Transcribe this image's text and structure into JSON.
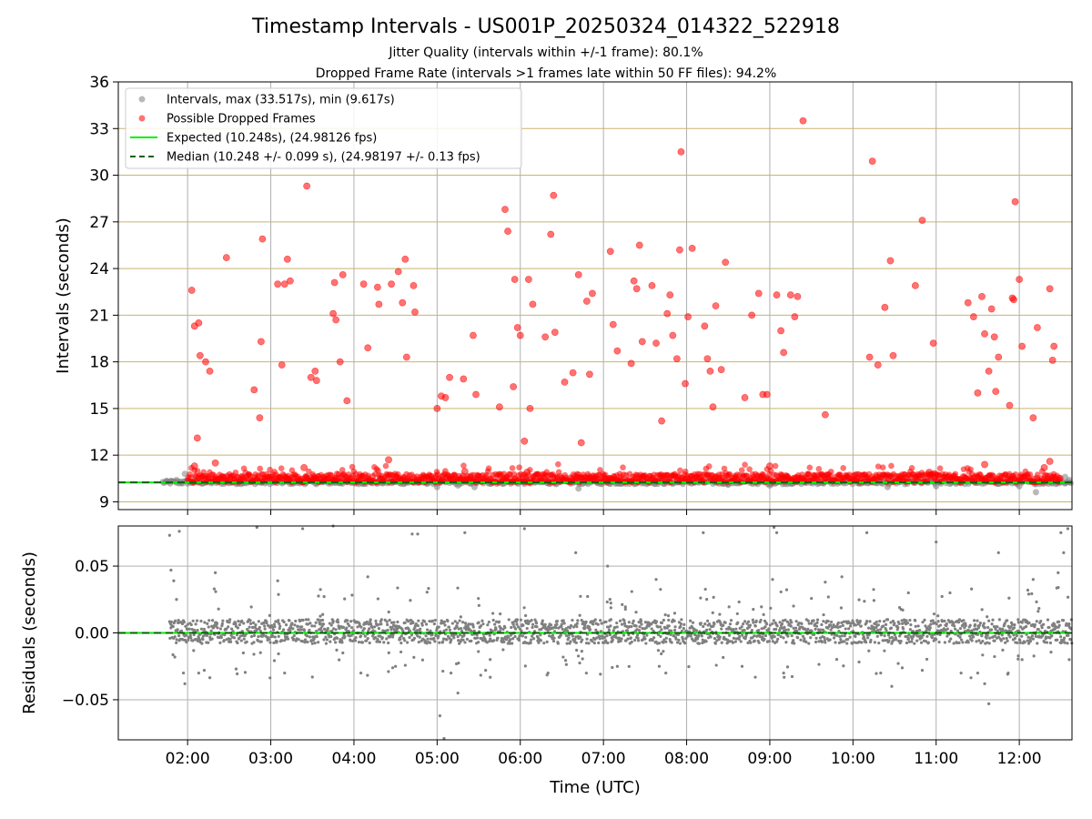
{
  "title": "Timestamp Intervals - US001P_20250324_014322_522918",
  "subtitle_lines": [
    "Jitter Quality (intervals within +/-1 frame): 80.1%",
    "Dropped Frame Rate (intervals >1 frames late within 50 FF files): 94.2%"
  ],
  "colors": {
    "intervals": "#808080",
    "dropped": "#ff0000",
    "expected": "#00ee00",
    "median": "#006400",
    "grid_top": "#c8b46e",
    "grid_bottom": "#b0b0b0"
  },
  "chart_data": [
    {
      "type": "scatter",
      "ylabel": "Intervals (seconds)",
      "ylim": [
        8.5,
        36
      ],
      "yticks": [
        9,
        12,
        15,
        18,
        21,
        24,
        27,
        30,
        33,
        36
      ],
      "xlim": [
        "01:10",
        "12:38"
      ],
      "xticks": [
        "02:00",
        "03:00",
        "04:00",
        "05:00",
        "06:00",
        "07:00",
        "08:00",
        "09:00",
        "10:00",
        "11:00",
        "12:00"
      ],
      "grid": "on",
      "legend_position": "top-left",
      "series": [
        {
          "name": "Intervals, max (33.517s), min (9.617s)",
          "kind": "scatter",
          "baseline_value": 10.25,
          "points": [
            [
              "01:45",
              10.3
            ],
            [
              "01:48",
              10.35
            ],
            [
              "01:52",
              10.4
            ],
            [
              "01:55",
              10.3
            ],
            [
              "01:58",
              10.8
            ],
            [
              "02:05",
              10.3
            ],
            [
              "05:00",
              9.95
            ],
            [
              "05:15",
              10.05
            ],
            [
              "05:27",
              9.95
            ],
            [
              "06:42",
              9.85
            ],
            [
              "08:30",
              10.1
            ],
            [
              "09:00",
              10.05
            ],
            [
              "10:25",
              9.95
            ],
            [
              "11:00",
              10.0
            ],
            [
              "12:00",
              10.0
            ],
            [
              "12:12",
              9.617
            ],
            [
              "12:28",
              10.3
            ],
            [
              "12:33",
              10.6
            ],
            [
              "12:36",
              10.4
            ]
          ]
        },
        {
          "name": "Possible Dropped Frames",
          "kind": "scatter",
          "points": [
            [
              "02:03",
              22.6
            ],
            [
              "02:05",
              20.3
            ],
            [
              "02:07",
              13.1
            ],
            [
              "02:08",
              20.5
            ],
            [
              "02:09",
              18.4
            ],
            [
              "02:13",
              18.0
            ],
            [
              "02:16",
              17.4
            ],
            [
              "02:28",
              24.7
            ],
            [
              "02:48",
              16.2
            ],
            [
              "02:52",
              14.4
            ],
            [
              "02:53",
              19.3
            ],
            [
              "02:54",
              25.9
            ],
            [
              "03:05",
              23.0
            ],
            [
              "03:08",
              17.8
            ],
            [
              "03:10",
              23.0
            ],
            [
              "03:12",
              24.6
            ],
            [
              "03:14",
              23.2
            ],
            [
              "03:24",
              11.2
            ],
            [
              "03:26",
              29.3
            ],
            [
              "03:29",
              17.0
            ],
            [
              "03:32",
              17.4
            ],
            [
              "03:33",
              16.8
            ],
            [
              "03:45",
              21.1
            ],
            [
              "03:46",
              23.1
            ],
            [
              "03:47",
              20.7
            ],
            [
              "03:50",
              18.0
            ],
            [
              "03:52",
              23.6
            ],
            [
              "03:55",
              15.5
            ],
            [
              "04:07",
              23.0
            ],
            [
              "04:10",
              18.9
            ],
            [
              "04:17",
              22.8
            ],
            [
              "04:18",
              21.7
            ],
            [
              "04:27",
              23.0
            ],
            [
              "04:32",
              23.8
            ],
            [
              "04:35",
              21.8
            ],
            [
              "04:37",
              24.6
            ],
            [
              "04:38",
              18.3
            ],
            [
              "04:43",
              22.9
            ],
            [
              "04:44",
              21.2
            ],
            [
              "05:00",
              15.0
            ],
            [
              "05:03",
              15.8
            ],
            [
              "05:06",
              15.7
            ],
            [
              "05:09",
              17.0
            ],
            [
              "05:19",
              16.9
            ],
            [
              "05:26",
              19.7
            ],
            [
              "05:28",
              15.9
            ],
            [
              "05:45",
              15.1
            ],
            [
              "05:49",
              27.8
            ],
            [
              "05:51",
              26.4
            ],
            [
              "05:55",
              16.4
            ],
            [
              "05:56",
              23.3
            ],
            [
              "05:58",
              20.2
            ],
            [
              "06:00",
              19.7
            ],
            [
              "06:03",
              12.9
            ],
            [
              "06:06",
              23.3
            ],
            [
              "06:07",
              15.0
            ],
            [
              "06:09",
              21.7
            ],
            [
              "06:18",
              19.6
            ],
            [
              "06:22",
              26.2
            ],
            [
              "06:24",
              28.7
            ],
            [
              "06:25",
              19.9
            ],
            [
              "06:32",
              16.7
            ],
            [
              "06:38",
              17.3
            ],
            [
              "06:42",
              23.6
            ],
            [
              "06:44",
              12.8
            ],
            [
              "06:48",
              21.9
            ],
            [
              "06:50",
              17.2
            ],
            [
              "06:52",
              22.4
            ],
            [
              "07:05",
              25.1
            ],
            [
              "07:07",
              20.4
            ],
            [
              "07:10",
              18.7
            ],
            [
              "07:20",
              17.9
            ],
            [
              "07:22",
              23.2
            ],
            [
              "07:24",
              22.7
            ],
            [
              "07:26",
              25.5
            ],
            [
              "07:28",
              19.3
            ],
            [
              "07:35",
              22.9
            ],
            [
              "07:38",
              19.2
            ],
            [
              "07:42",
              14.2
            ],
            [
              "07:46",
              21.1
            ],
            [
              "07:48",
              22.3
            ],
            [
              "07:50",
              19.7
            ],
            [
              "07:53",
              18.2
            ],
            [
              "07:55",
              25.2
            ],
            [
              "07:56",
              31.5
            ],
            [
              "07:59",
              16.6
            ],
            [
              "08:01",
              20.9
            ],
            [
              "08:04",
              25.3
            ],
            [
              "08:13",
              20.3
            ],
            [
              "08:15",
              18.2
            ],
            [
              "08:17",
              17.4
            ],
            [
              "08:19",
              15.1
            ],
            [
              "08:21",
              21.6
            ],
            [
              "08:25",
              17.5
            ],
            [
              "08:28",
              24.4
            ],
            [
              "08:42",
              15.7
            ],
            [
              "08:47",
              21.0
            ],
            [
              "08:52",
              22.4
            ],
            [
              "08:55",
              15.9
            ],
            [
              "08:58",
              15.9
            ],
            [
              "09:05",
              22.3
            ],
            [
              "09:08",
              20.0
            ],
            [
              "09:10",
              18.6
            ],
            [
              "09:15",
              22.3
            ],
            [
              "09:18",
              20.9
            ],
            [
              "09:20",
              22.2
            ],
            [
              "09:24",
              33.5
            ],
            [
              "09:40",
              14.6
            ],
            [
              "10:12",
              18.3
            ],
            [
              "10:14",
              30.9
            ],
            [
              "10:18",
              17.8
            ],
            [
              "10:23",
              21.5
            ],
            [
              "10:27",
              24.5
            ],
            [
              "10:29",
              18.4
            ],
            [
              "10:45",
              22.9
            ],
            [
              "10:50",
              27.1
            ],
            [
              "10:58",
              19.2
            ],
            [
              "11:23",
              21.8
            ],
            [
              "11:27",
              20.9
            ],
            [
              "11:30",
              16.0
            ],
            [
              "11:33",
              22.2
            ],
            [
              "11:35",
              19.8
            ],
            [
              "11:38",
              17.4
            ],
            [
              "11:40",
              21.4
            ],
            [
              "11:42",
              19.6
            ],
            [
              "11:43",
              16.1
            ],
            [
              "11:45",
              18.3
            ],
            [
              "11:53",
              15.2
            ],
            [
              "11:55",
              22.1
            ],
            [
              "11:56",
              22.0
            ],
            [
              "11:57",
              28.3
            ],
            [
              "12:00",
              23.3
            ],
            [
              "12:02",
              19.0
            ],
            [
              "12:10",
              14.4
            ],
            [
              "12:13",
              20.2
            ],
            [
              "12:22",
              22.7
            ],
            [
              "12:24",
              18.1
            ],
            [
              "12:25",
              19.0
            ],
            [
              "02:05",
              11.3
            ],
            [
              "02:20",
              11.5
            ],
            [
              "04:25",
              11.7
            ],
            [
              "05:20",
              10.95
            ],
            [
              "06:05",
              10.9
            ],
            [
              "09:00",
              11.3
            ],
            [
              "10:55",
              10.9
            ],
            [
              "11:35",
              11.4
            ],
            [
              "12:22",
              11.6
            ],
            [
              "12:18",
              11.2
            ]
          ]
        },
        {
          "name": "Expected (10.248s), (24.98126 fps)",
          "kind": "hline",
          "value": 10.248
        },
        {
          "name": "Median (10.248 +/- 0.099 s), (24.98197 +/- 0.13 fps)",
          "kind": "hline-dashed",
          "value": 10.248
        }
      ]
    },
    {
      "type": "scatter",
      "ylabel": "Residuals (seconds)",
      "xlabel": "Time (UTC)",
      "ylim": [
        -0.08,
        0.08
      ],
      "yticks": [
        0.05,
        0.0,
        -0.05
      ],
      "ytick_labels": [
        "0.05",
        "0.00",
        "−0.05"
      ],
      "grid": "on",
      "series": [
        {
          "name": "Residuals",
          "kind": "scatter",
          "band": [
            -0.008,
            0.01
          ],
          "points": [
            [
              "01:47",
              0.073
            ],
            [
              "01:48",
              0.047
            ],
            [
              "01:50",
              0.039
            ],
            [
              "01:52",
              0.025
            ],
            [
              "01:54",
              0.076
            ],
            [
              "01:57",
              -0.03
            ],
            [
              "01:58",
              -0.038
            ],
            [
              "02:08",
              -0.03
            ],
            [
              "02:12",
              -0.028
            ],
            [
              "02:20",
              0.045
            ],
            [
              "02:35",
              -0.027
            ],
            [
              "02:50",
              0.079
            ],
            [
              "03:05",
              0.039
            ],
            [
              "03:10",
              -0.03
            ],
            [
              "03:23",
              0.078
            ],
            [
              "03:30",
              -0.033
            ],
            [
              "03:45",
              0.08
            ],
            [
              "03:52",
              -0.015
            ],
            [
              "04:05",
              -0.03
            ],
            [
              "04:10",
              0.042
            ],
            [
              "04:30",
              -0.025
            ],
            [
              "04:42",
              0.074
            ],
            [
              "04:46",
              0.074
            ],
            [
              "05:02",
              -0.062
            ],
            [
              "05:05",
              -0.079
            ],
            [
              "05:10",
              -0.03
            ],
            [
              "05:15",
              -0.045
            ],
            [
              "05:20",
              0.075
            ],
            [
              "05:35",
              -0.028
            ],
            [
              "06:03",
              0.078
            ],
            [
              "06:20",
              -0.03
            ],
            [
              "06:40",
              0.06
            ],
            [
              "07:03",
              0.05
            ],
            [
              "07:10",
              -0.025
            ],
            [
              "07:38",
              0.04
            ],
            [
              "07:45",
              -0.03
            ],
            [
              "08:12",
              0.075
            ],
            [
              "08:40",
              -0.025
            ],
            [
              "09:02",
              0.04
            ],
            [
              "09:03",
              0.079
            ],
            [
              "09:05",
              0.075
            ],
            [
              "09:10",
              -0.03
            ],
            [
              "09:40",
              0.038
            ],
            [
              "09:52",
              0.042
            ],
            [
              "10:10",
              0.075
            ],
            [
              "10:20",
              -0.03
            ],
            [
              "10:28",
              -0.04
            ],
            [
              "10:40",
              0.03
            ],
            [
              "10:50",
              -0.028
            ],
            [
              "11:00",
              0.068
            ],
            [
              "11:10",
              0.03
            ],
            [
              "11:18",
              -0.03
            ],
            [
              "11:30",
              -0.03
            ],
            [
              "11:35",
              -0.038
            ],
            [
              "11:38",
              -0.053
            ],
            [
              "11:45",
              0.06
            ],
            [
              "11:52",
              -0.03
            ],
            [
              "12:02",
              -0.02
            ],
            [
              "12:10",
              0.04
            ],
            [
              "12:28",
              0.045
            ],
            [
              "12:30",
              0.075
            ],
            [
              "12:32",
              0.06
            ],
            [
              "12:35",
              0.078
            ],
            [
              "12:36",
              -0.02
            ]
          ]
        },
        {
          "name": "Expected",
          "kind": "hline",
          "value": 0.0
        },
        {
          "name": "Median",
          "kind": "hline-dashed",
          "value": 0.0
        }
      ]
    }
  ]
}
